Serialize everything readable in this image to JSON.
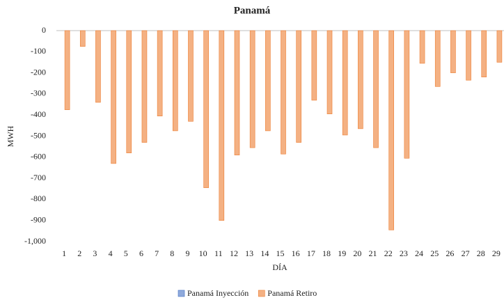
{
  "chart_data": {
    "type": "bar",
    "title": "Panamá",
    "x_label": "DÍA",
    "y_label": "MWH",
    "categories": [
      "1",
      "2",
      "3",
      "4",
      "5",
      "6",
      "7",
      "8",
      "9",
      "10",
      "11",
      "12",
      "13",
      "14",
      "15",
      "16",
      "17",
      "18",
      "19",
      "20",
      "21",
      "22",
      "23",
      "24",
      "25",
      "26",
      "27",
      "28",
      "29"
    ],
    "series": [
      {
        "name": "Panamá Inyección",
        "color": "#8faadc",
        "values": [
          0,
          0,
          0,
          0,
          0,
          0,
          0,
          0,
          0,
          0,
          0,
          0,
          0,
          0,
          0,
          0,
          0,
          0,
          0,
          0,
          0,
          0,
          0,
          0,
          0,
          0,
          0,
          0,
          0
        ]
      },
      {
        "name": "Panamá Retiro",
        "color": "#f4b183",
        "values": [
          -375,
          -75,
          -340,
          -630,
          -580,
          -530,
          -405,
          -475,
          -430,
          -745,
          -900,
          -590,
          -555,
          -475,
          -585,
          -530,
          -330,
          -395,
          -495,
          -465,
          -555,
          -945,
          -605,
          -155,
          -265,
          -200,
          -235,
          -220,
          -150
        ]
      }
    ],
    "ylim": [
      -1000,
      0
    ],
    "yticks": [
      0,
      -100,
      -200,
      -300,
      -400,
      -500,
      -600,
      -700,
      -800,
      -900,
      {
        "value": -1000,
        "label": "-1,000"
      }
    ],
    "grid": false,
    "legend": "bottom"
  }
}
